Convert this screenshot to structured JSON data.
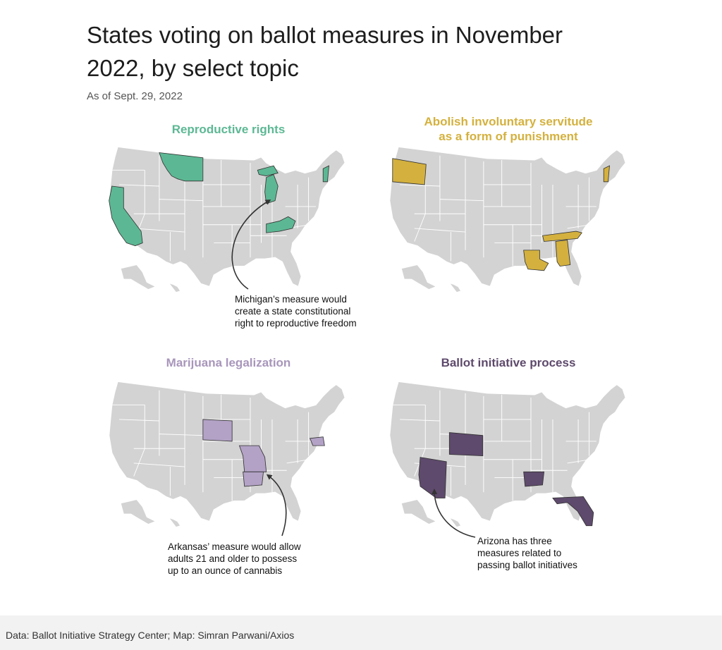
{
  "title": "States voting on ballot measures in November 2022, by select topic",
  "subtitle": "As of Sept. 29, 2022",
  "footer": "Data: Ballot Initiative Strategy Center; Map: Simran Parwani/Axios",
  "colors": {
    "base": "#d3d3d3",
    "reproductive": "#5cb894",
    "servitude": "#d4b13e",
    "marijuana": "#b3a2c6",
    "ballot": "#5e4a6c"
  },
  "panels": [
    {
      "title": "Reproductive rights",
      "color_key": "reproductive",
      "highlighted_states": [
        "Montana",
        "California",
        "Michigan",
        "Kentucky",
        "Vermont"
      ],
      "annotation": "Michigan’s measure would\ncreate a state constitutional\nright to reproductive freedom"
    },
    {
      "title": "Abolish involuntary servitude\nas a form of punishment",
      "color_key": "servitude",
      "highlighted_states": [
        "Oregon",
        "Tennessee",
        "Alabama",
        "Louisiana",
        "Vermont"
      ],
      "annotation": ""
    },
    {
      "title": "Marijuana legalization",
      "color_key": "marijuana",
      "highlighted_states": [
        "South Dakota",
        "Missouri",
        "Arkansas",
        "Maryland"
      ],
      "annotation": "Arkansas’ measure would allow\nadults 21 and older to possess\nup to an ounce of cannabis"
    },
    {
      "title": "Ballot initiative process",
      "color_key": "ballot",
      "highlighted_states": [
        "Arizona",
        "Colorado",
        "Arkansas",
        "Florida"
      ],
      "annotation": "Arizona has three\nmeasures related to\npassing ballot initiatives"
    }
  ]
}
